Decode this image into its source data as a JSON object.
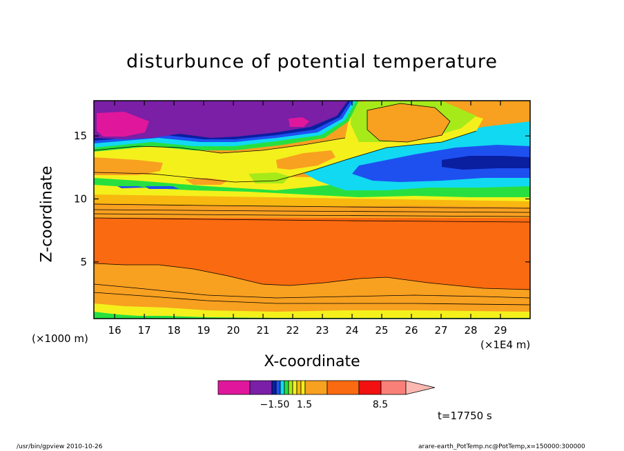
{
  "chart_data": {
    "type": "heatmap",
    "title": "disturbunce of potential temperature",
    "xlabel": "X-coordinate",
    "ylabel": "Z-coordinate",
    "x_unit_left": "(×1000 m)",
    "x_unit_right": "(×1E4 m)",
    "x_ticks": [
      16,
      17,
      18,
      19,
      20,
      21,
      22,
      23,
      24,
      25,
      26,
      27,
      28,
      29
    ],
    "y_ticks": [
      5,
      10,
      15
    ],
    "xlim": [
      15.3,
      30.0
    ],
    "ylim": [
      0.5,
      17.8
    ],
    "colorbar_labels": [
      "−1.50",
      "1.5",
      "8.5"
    ],
    "colors": {
      "magenta": "#e0179c",
      "purple": "#7a1fa6",
      "darkblue": "#0a1ea0",
      "blue": "#1e50f0",
      "cyan": "#11d9f2",
      "green": "#27e040",
      "lime": "#a6ea1a",
      "yellow": "#f4f01c",
      "lightorange": "#f8b810",
      "orange": "#f8a020",
      "darkorange": "#fa6a10",
      "red": "#f21010",
      "salmon": "#f88078",
      "pink": "#fbb8b0"
    }
  },
  "annotations": {
    "time": "t=17750 s",
    "footer_left": "/usr/bin/gpview   2010-10-26",
    "footer_right": "arare-earth_PotTemp.nc@PotTemp,x=150000:300000"
  }
}
